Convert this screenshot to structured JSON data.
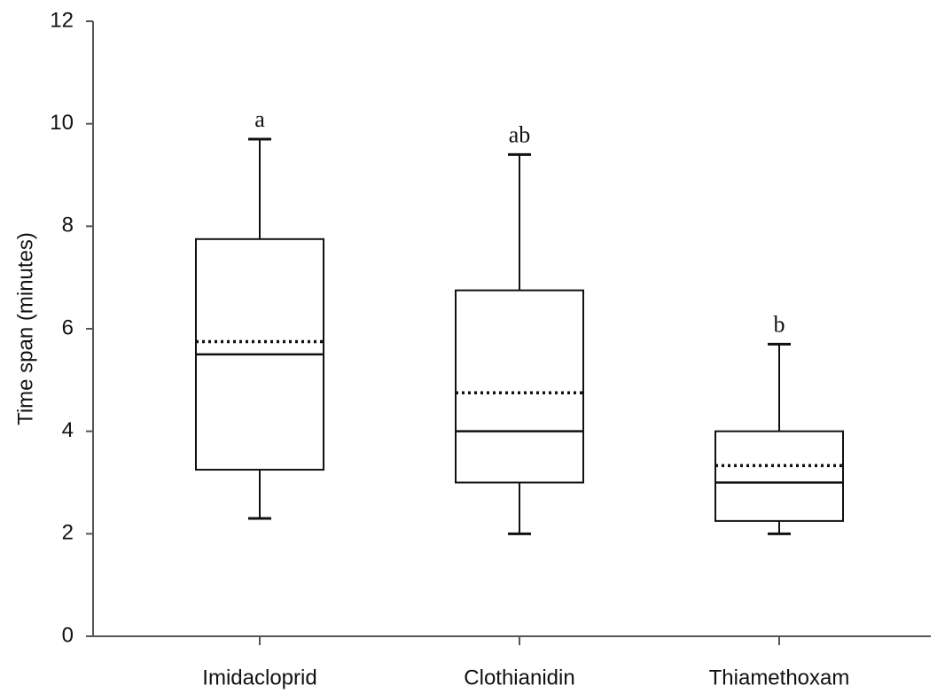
{
  "chart_data": {
    "type": "box",
    "y_label": "Time span (minutes)",
    "categories": [
      "Imidacloprid",
      "Clothianidin",
      "Thiamethoxam"
    ],
    "boxes": [
      {
        "min": 2.3,
        "q1": 3.25,
        "median": 5.5,
        "mean": 5.75,
        "q3": 7.75,
        "max": 9.7
      },
      {
        "min": 2.0,
        "q1": 3.0,
        "median": 4.0,
        "mean": 4.75,
        "q3": 6.75,
        "max": 9.4
      },
      {
        "min": 2.0,
        "q1": 2.25,
        "median": 3.0,
        "mean": 3.33,
        "q3": 4.0,
        "max": 5.7
      }
    ],
    "annotations": [
      "a",
      "ab",
      "b"
    ],
    "ylim": [
      0,
      12
    ],
    "yticks": [
      0,
      2,
      4,
      6,
      8,
      10,
      12
    ],
    "color": "#111111"
  }
}
